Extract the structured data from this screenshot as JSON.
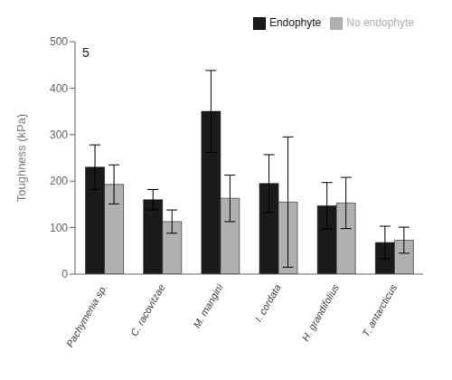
{
  "chart_data": {
    "type": "bar",
    "ylabel": "Toughness (kPa)",
    "annotations": [
      "5"
    ],
    "categories": [
      "Pachymenia sp.",
      "C. racovitzae",
      "M. mangini",
      "I. cordata",
      "H. grandifolius",
      "T. antarcticus"
    ],
    "series": [
      {
        "name": "Endophyte",
        "color": "#1a1a1a",
        "values": [
          230,
          160,
          350,
          195,
          147,
          68
        ],
        "errors": [
          48,
          22,
          88,
          62,
          50,
          35
        ]
      },
      {
        "name": "No endophyte",
        "color": "#b0b0b0",
        "values": [
          193,
          113,
          163,
          155,
          153,
          73
        ],
        "errors": [
          42,
          25,
          50,
          140,
          55,
          28
        ]
      }
    ],
    "ylim": [
      0,
      500
    ],
    "yticks": [
      0,
      100,
      200,
      300,
      400,
      500
    ],
    "grid": false,
    "legend": "upper right"
  }
}
